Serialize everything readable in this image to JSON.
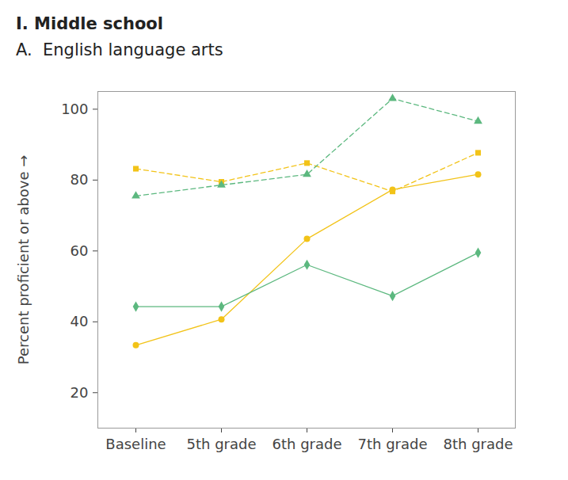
{
  "chart_data": {
    "type": "line",
    "title": "I. Middle school",
    "subtitle": "A.  English language arts",
    "y_label": "Percent proficient or above",
    "categories": [
      "Baseline",
      "5th grade",
      "6th grade",
      "7th grade",
      "8th grade"
    ],
    "series": [
      {
        "color": "#f2c318",
        "marker": "square",
        "line_style": "dashed",
        "values": [
          83.2,
          79.5,
          84.8,
          76.8,
          87.7
        ]
      },
      {
        "color": "#5cb87f",
        "marker": "triangle",
        "line_style": "dashed",
        "values": [
          75.5,
          78.6,
          81.6,
          103,
          96.6
        ]
      },
      {
        "color": "#f2c318",
        "marker": "circle",
        "line_style": "solid",
        "values": [
          33.4,
          40.7,
          63.4,
          77.3,
          81.6
        ]
      },
      {
        "color": "#5cb87f",
        "marker": "diamond",
        "line_style": "solid",
        "values": [
          44.3,
          44.3,
          56.1,
          47.3,
          59.5
        ]
      }
    ],
    "ylim": [
      10,
      105
    ],
    "yticks": [
      20,
      40,
      60,
      80,
      100
    ],
    "grid": false
  }
}
